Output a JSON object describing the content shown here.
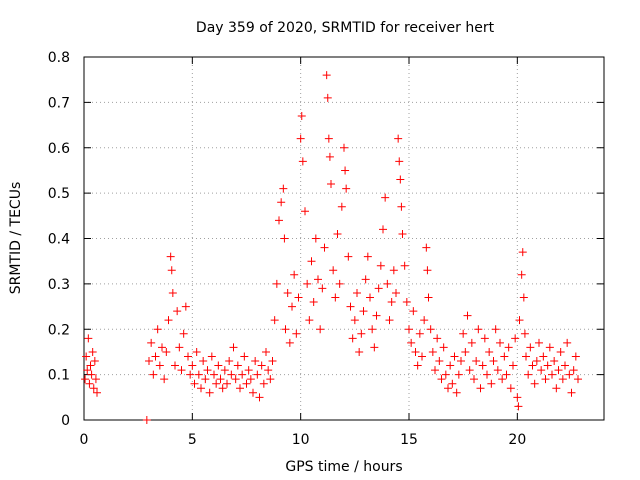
{
  "chart_data": {
    "type": "scatter",
    "title": "Day 359 of 2020, SRMTID for receiver hert",
    "xlabel": "GPS time / hours",
    "ylabel": "SRMTID / TECUs",
    "xlim": [
      0,
      24
    ],
    "ylim": [
      0,
      0.8
    ],
    "xticks": [
      0,
      5,
      10,
      15,
      20
    ],
    "yticks": [
      0,
      0.1,
      0.2,
      0.3,
      0.4,
      0.5,
      0.6,
      0.7,
      0.8
    ],
    "grid": true,
    "marker": "plus",
    "color": "#ff0000",
    "points": [
      [
        0.05,
        0.09
      ],
      [
        0.1,
        0.14
      ],
      [
        0.15,
        0.11
      ],
      [
        0.2,
        0.18
      ],
      [
        0.25,
        0.08
      ],
      [
        0.3,
        0.12
      ],
      [
        0.35,
        0.1
      ],
      [
        0.4,
        0.15
      ],
      [
        0.45,
        0.07
      ],
      [
        0.5,
        0.13
      ],
      [
        0.55,
        0.09
      ],
      [
        0.6,
        0.06
      ],
      [
        2.9,
        0.0
      ],
      [
        3.0,
        0.13
      ],
      [
        3.1,
        0.17
      ],
      [
        3.2,
        0.1
      ],
      [
        3.3,
        0.14
      ],
      [
        3.4,
        0.2
      ],
      [
        3.5,
        0.12
      ],
      [
        3.6,
        0.16
      ],
      [
        3.7,
        0.09
      ],
      [
        3.8,
        0.15
      ],
      [
        3.9,
        0.22
      ],
      [
        4.0,
        0.36
      ],
      [
        4.05,
        0.33
      ],
      [
        4.1,
        0.28
      ],
      [
        4.2,
        0.12
      ],
      [
        4.3,
        0.24
      ],
      [
        4.4,
        0.16
      ],
      [
        4.5,
        0.11
      ],
      [
        4.6,
        0.19
      ],
      [
        4.7,
        0.25
      ],
      [
        4.8,
        0.14
      ],
      [
        4.9,
        0.1
      ],
      [
        5.0,
        0.12
      ],
      [
        5.1,
        0.08
      ],
      [
        5.2,
        0.15
      ],
      [
        5.3,
        0.1
      ],
      [
        5.4,
        0.07
      ],
      [
        5.5,
        0.13
      ],
      [
        5.6,
        0.09
      ],
      [
        5.7,
        0.11
      ],
      [
        5.8,
        0.06
      ],
      [
        5.9,
        0.14
      ],
      [
        6.0,
        0.1
      ],
      [
        6.1,
        0.08
      ],
      [
        6.2,
        0.12
      ],
      [
        6.3,
        0.09
      ],
      [
        6.4,
        0.07
      ],
      [
        6.5,
        0.11
      ],
      [
        6.6,
        0.08
      ],
      [
        6.7,
        0.13
      ],
      [
        6.8,
        0.1
      ],
      [
        6.9,
        0.16
      ],
      [
        7.0,
        0.09
      ],
      [
        7.1,
        0.12
      ],
      [
        7.2,
        0.07
      ],
      [
        7.3,
        0.1
      ],
      [
        7.4,
        0.14
      ],
      [
        7.5,
        0.08
      ],
      [
        7.6,
        0.11
      ],
      [
        7.7,
        0.09
      ],
      [
        7.8,
        0.06
      ],
      [
        7.9,
        0.13
      ],
      [
        8.0,
        0.1
      ],
      [
        8.1,
        0.05
      ],
      [
        8.2,
        0.12
      ],
      [
        8.3,
        0.08
      ],
      [
        8.4,
        0.15
      ],
      [
        8.5,
        0.11
      ],
      [
        8.6,
        0.09
      ],
      [
        8.7,
        0.13
      ],
      [
        8.8,
        0.22
      ],
      [
        8.9,
        0.3
      ],
      [
        9.0,
        0.44
      ],
      [
        9.1,
        0.48
      ],
      [
        9.2,
        0.51
      ],
      [
        9.25,
        0.4
      ],
      [
        9.3,
        0.2
      ],
      [
        9.4,
        0.28
      ],
      [
        9.5,
        0.17
      ],
      [
        9.6,
        0.25
      ],
      [
        9.7,
        0.32
      ],
      [
        9.8,
        0.19
      ],
      [
        9.9,
        0.27
      ],
      [
        10.0,
        0.62
      ],
      [
        10.05,
        0.67
      ],
      [
        10.1,
        0.57
      ],
      [
        10.2,
        0.46
      ],
      [
        10.3,
        0.3
      ],
      [
        10.4,
        0.22
      ],
      [
        10.5,
        0.35
      ],
      [
        10.6,
        0.26
      ],
      [
        10.7,
        0.4
      ],
      [
        10.8,
        0.31
      ],
      [
        10.9,
        0.2
      ],
      [
        11.0,
        0.29
      ],
      [
        11.1,
        0.38
      ],
      [
        11.2,
        0.76
      ],
      [
        11.25,
        0.71
      ],
      [
        11.3,
        0.62
      ],
      [
        11.35,
        0.58
      ],
      [
        11.4,
        0.52
      ],
      [
        11.5,
        0.33
      ],
      [
        11.6,
        0.27
      ],
      [
        11.7,
        0.41
      ],
      [
        11.8,
        0.3
      ],
      [
        11.9,
        0.47
      ],
      [
        12.0,
        0.6
      ],
      [
        12.05,
        0.55
      ],
      [
        12.1,
        0.51
      ],
      [
        12.2,
        0.36
      ],
      [
        12.3,
        0.25
      ],
      [
        12.4,
        0.18
      ],
      [
        12.5,
        0.22
      ],
      [
        12.6,
        0.28
      ],
      [
        12.7,
        0.15
      ],
      [
        12.8,
        0.19
      ],
      [
        12.9,
        0.24
      ],
      [
        13.0,
        0.31
      ],
      [
        13.1,
        0.36
      ],
      [
        13.2,
        0.27
      ],
      [
        13.3,
        0.2
      ],
      [
        13.4,
        0.16
      ],
      [
        13.5,
        0.23
      ],
      [
        13.6,
        0.29
      ],
      [
        13.7,
        0.34
      ],
      [
        13.8,
        0.42
      ],
      [
        13.9,
        0.49
      ],
      [
        14.0,
        0.3
      ],
      [
        14.1,
        0.22
      ],
      [
        14.2,
        0.26
      ],
      [
        14.3,
        0.33
      ],
      [
        14.4,
        0.28
      ],
      [
        14.5,
        0.62
      ],
      [
        14.55,
        0.57
      ],
      [
        14.6,
        0.53
      ],
      [
        14.65,
        0.47
      ],
      [
        14.7,
        0.41
      ],
      [
        14.8,
        0.34
      ],
      [
        14.9,
        0.26
      ],
      [
        15.0,
        0.2
      ],
      [
        15.1,
        0.17
      ],
      [
        15.2,
        0.24
      ],
      [
        15.3,
        0.15
      ],
      [
        15.4,
        0.12
      ],
      [
        15.5,
        0.19
      ],
      [
        15.6,
        0.14
      ],
      [
        15.7,
        0.22
      ],
      [
        15.8,
        0.38
      ],
      [
        15.85,
        0.33
      ],
      [
        15.9,
        0.27
      ],
      [
        16.0,
        0.2
      ],
      [
        16.1,
        0.15
      ],
      [
        16.2,
        0.11
      ],
      [
        16.3,
        0.18
      ],
      [
        16.4,
        0.13
      ],
      [
        16.5,
        0.09
      ],
      [
        16.6,
        0.16
      ],
      [
        16.7,
        0.1
      ],
      [
        16.8,
        0.07
      ],
      [
        16.9,
        0.12
      ],
      [
        17.0,
        0.08
      ],
      [
        17.1,
        0.14
      ],
      [
        17.2,
        0.06
      ],
      [
        17.3,
        0.1
      ],
      [
        17.4,
        0.13
      ],
      [
        17.5,
        0.19
      ],
      [
        17.6,
        0.15
      ],
      [
        17.7,
        0.23
      ],
      [
        17.8,
        0.11
      ],
      [
        17.9,
        0.17
      ],
      [
        18.0,
        0.09
      ],
      [
        18.1,
        0.13
      ],
      [
        18.2,
        0.2
      ],
      [
        18.3,
        0.07
      ],
      [
        18.4,
        0.12
      ],
      [
        18.5,
        0.18
      ],
      [
        18.6,
        0.1
      ],
      [
        18.7,
        0.15
      ],
      [
        18.8,
        0.08
      ],
      [
        18.9,
        0.13
      ],
      [
        19.0,
        0.2
      ],
      [
        19.1,
        0.11
      ],
      [
        19.2,
        0.17
      ],
      [
        19.3,
        0.09
      ],
      [
        19.4,
        0.14
      ],
      [
        19.5,
        0.1
      ],
      [
        19.6,
        0.16
      ],
      [
        19.7,
        0.07
      ],
      [
        19.8,
        0.12
      ],
      [
        19.9,
        0.18
      ],
      [
        20.0,
        0.05
      ],
      [
        20.05,
        0.03
      ],
      [
        20.1,
        0.22
      ],
      [
        20.2,
        0.32
      ],
      [
        20.25,
        0.37
      ],
      [
        20.3,
        0.27
      ],
      [
        20.35,
        0.19
      ],
      [
        20.4,
        0.14
      ],
      [
        20.5,
        0.1
      ],
      [
        20.6,
        0.16
      ],
      [
        20.7,
        0.12
      ],
      [
        20.8,
        0.08
      ],
      [
        20.9,
        0.13
      ],
      [
        21.0,
        0.17
      ],
      [
        21.1,
        0.11
      ],
      [
        21.2,
        0.14
      ],
      [
        21.3,
        0.09
      ],
      [
        21.4,
        0.12
      ],
      [
        21.5,
        0.16
      ],
      [
        21.6,
        0.1
      ],
      [
        21.7,
        0.13
      ],
      [
        21.8,
        0.07
      ],
      [
        21.9,
        0.11
      ],
      [
        22.0,
        0.15
      ],
      [
        22.1,
        0.09
      ],
      [
        22.2,
        0.12
      ],
      [
        22.3,
        0.17
      ],
      [
        22.4,
        0.1
      ],
      [
        22.5,
        0.06
      ],
      [
        22.6,
        0.11
      ],
      [
        22.7,
        0.14
      ],
      [
        22.8,
        0.09
      ]
    ]
  }
}
